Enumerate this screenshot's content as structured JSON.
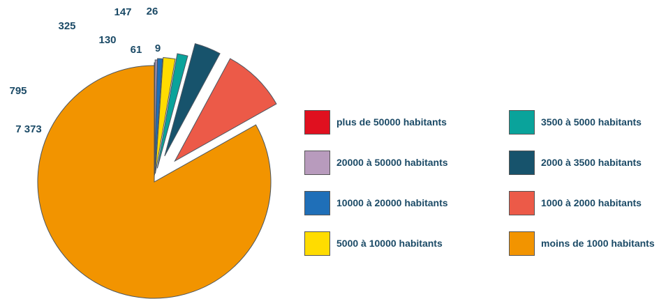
{
  "chart_data": {
    "type": "pie",
    "title": "",
    "slices": [
      {
        "label": "plus de 50000 habitants",
        "value": 9,
        "value_label": "9",
        "color": "#e0101f"
      },
      {
        "label": "20000 à 50000 habitants",
        "value": 26,
        "value_label": "26",
        "color": "#b89bbd"
      },
      {
        "label": "10000 à 20000 habitants",
        "value": 61,
        "value_label": "61",
        "color": "#1f6fb8"
      },
      {
        "label": "5000 à 10000 habitants",
        "value": 147,
        "value_label": "147",
        "color": "#ffdc00"
      },
      {
        "label": "3500 à 5000 habitants",
        "value": 130,
        "value_label": "130",
        "color": "#0aa39b"
      },
      {
        "label": "2000 à 3500 habitants",
        "value": 325,
        "value_label": "325",
        "color": "#17536c"
      },
      {
        "label": "1000 à 2000 habitants",
        "value": 795,
        "value_label": "795",
        "color": "#ec5a48"
      },
      {
        "label": "moins de 1000 habitants",
        "value": 7373,
        "value_label": "7 373",
        "color": "#f29400"
      }
    ],
    "legend_placement": "right"
  }
}
